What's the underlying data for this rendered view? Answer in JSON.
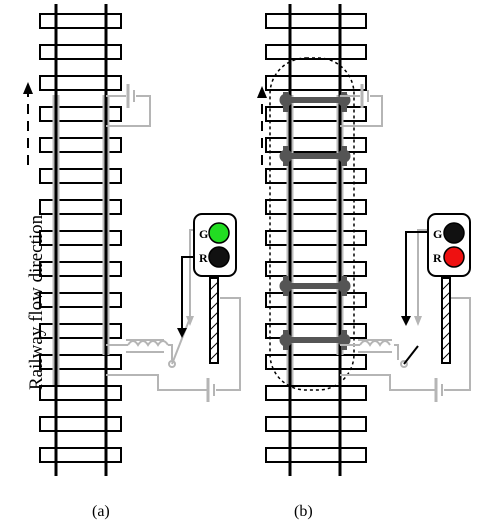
{
  "figure": {
    "direction_label": "Railway flow direction",
    "panels": [
      {
        "id": "a",
        "caption": "(a)",
        "signal": {
          "top_label": "G",
          "bottom_label": "R",
          "top_lamp_color": "#22dd22",
          "bottom_lamp_color": "#111111"
        },
        "train_present": false
      },
      {
        "id": "b",
        "caption": "(b)",
        "signal": {
          "top_label": "G",
          "bottom_label": "R",
          "top_lamp_color": "#111111",
          "bottom_lamp_color": "#ee1111"
        },
        "train_present": true
      }
    ]
  },
  "colors": {
    "rail": "#000000",
    "tie_fill": "#ffffff",
    "circuit_gray": "#b5b5b5",
    "axle_dark": "#555555"
  }
}
